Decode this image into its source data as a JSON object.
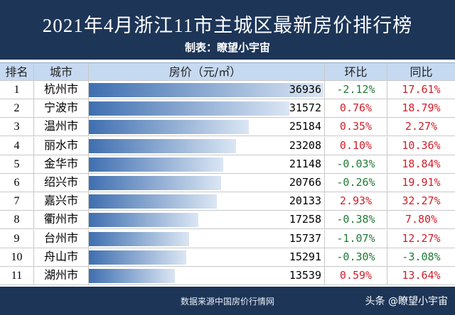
{
  "header": {
    "title": "2021年4月浙江11市主城区最新房价排行榜",
    "subtitle": "制表：瞭望小宇宙"
  },
  "table": {
    "columns": [
      "排名",
      "城市",
      "房价（元/㎡）",
      "环比",
      "同比"
    ],
    "rows": [
      [
        1,
        "杭州市",
        36936,
        "-2.12%",
        "17.61%"
      ],
      [
        2,
        "宁波市",
        31572,
        "0.76%",
        "18.79%"
      ],
      [
        3,
        "温州市",
        25184,
        "0.35%",
        "2.27%"
      ],
      [
        4,
        "丽水市",
        23208,
        "0.10%",
        "10.36%"
      ],
      [
        5,
        "金华市",
        21148,
        "-0.03%",
        "18.84%"
      ],
      [
        6,
        "绍兴市",
        20766,
        "-0.26%",
        "19.91%"
      ],
      [
        7,
        "嘉兴市",
        20133,
        "2.93%",
        "32.27%"
      ],
      [
        8,
        "衢州市",
        17258,
        "-0.38%",
        "7.80%"
      ],
      [
        9,
        "台州市",
        15737,
        "-1.07%",
        "12.27%"
      ],
      [
        10,
        "舟山市",
        15291,
        "-0.30%",
        "-3.08%"
      ],
      [
        11,
        "湖州市",
        13539,
        "0.59%",
        "13.64%"
      ]
    ]
  },
  "footer": {
    "source": "数据来源中国房价行情网",
    "watermark": "头条 @瞭望小宇宙"
  }
}
